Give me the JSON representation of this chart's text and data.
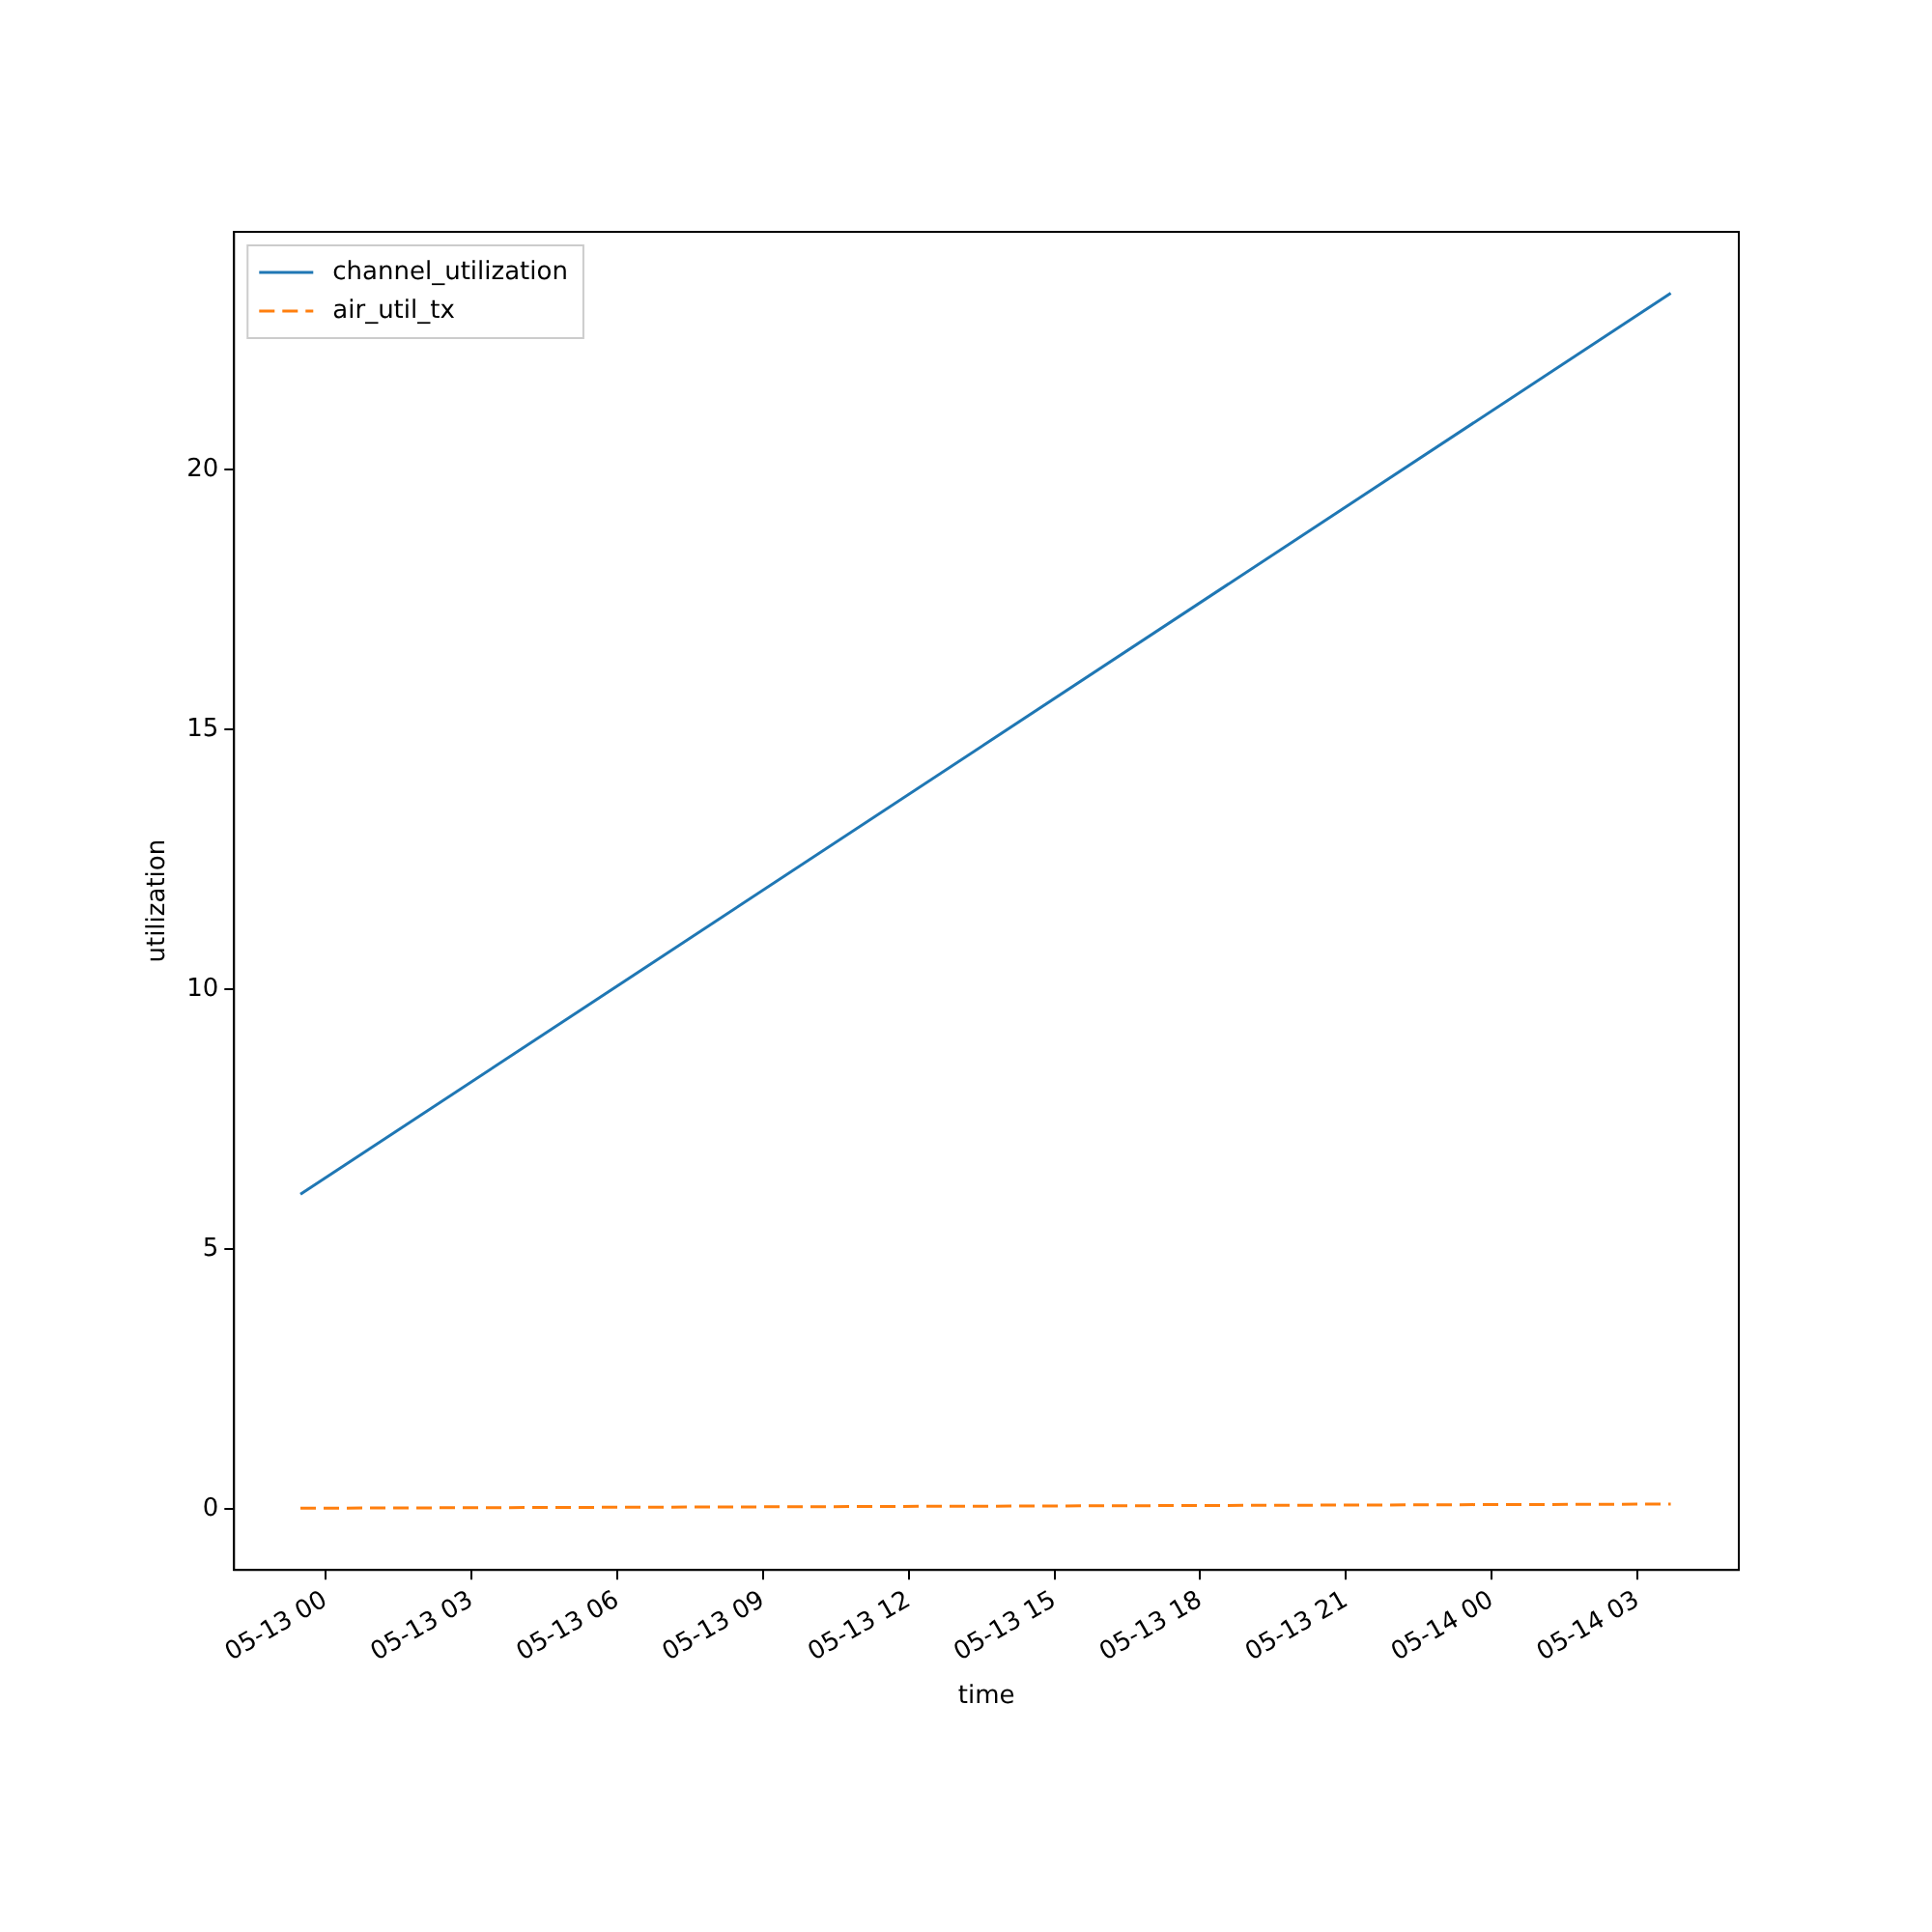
{
  "chart_data": {
    "type": "line",
    "xlabel": "time",
    "ylabel": "utilization",
    "x": [
      "--05-12T23:29",
      "--05-14T03:41"
    ],
    "series": [
      {
        "name": "channel_utilization",
        "color": "#1f77b4",
        "values": [
          6.06,
          23.4
        ],
        "line_style": "solid"
      },
      {
        "name": "air_util_tx",
        "color": "#ff7f0e",
        "values": [
          0.02,
          0.1
        ],
        "line_style": "dashed"
      }
    ],
    "xlim": [
      "--05-12T22:07",
      "--05-14T05:05"
    ],
    "xticks": [
      {
        "value": "--05-13T00:00",
        "label": "05-13 00"
      },
      {
        "value": "--05-13T03:00",
        "label": "05-13 03"
      },
      {
        "value": "--05-13T06:00",
        "label": "05-13 06"
      },
      {
        "value": "--05-13T09:00",
        "label": "05-13 09"
      },
      {
        "value": "--05-13T12:00",
        "label": "05-13 12"
      },
      {
        "value": "--05-13T15:00",
        "label": "05-13 15"
      },
      {
        "value": "--05-13T18:00",
        "label": "05-13 18"
      },
      {
        "value": "--05-13T21:00",
        "label": "05-13 21"
      },
      {
        "value": "--05-14T00:00",
        "label": "05-14 00"
      },
      {
        "value": "--05-14T03:00",
        "label": "05-14 03"
      }
    ],
    "ylim": [
      -1.17,
      24.58
    ],
    "yticks": [
      0,
      5,
      10,
      15,
      20
    ],
    "grid": false,
    "legend": "top left",
    "marker": "none"
  }
}
